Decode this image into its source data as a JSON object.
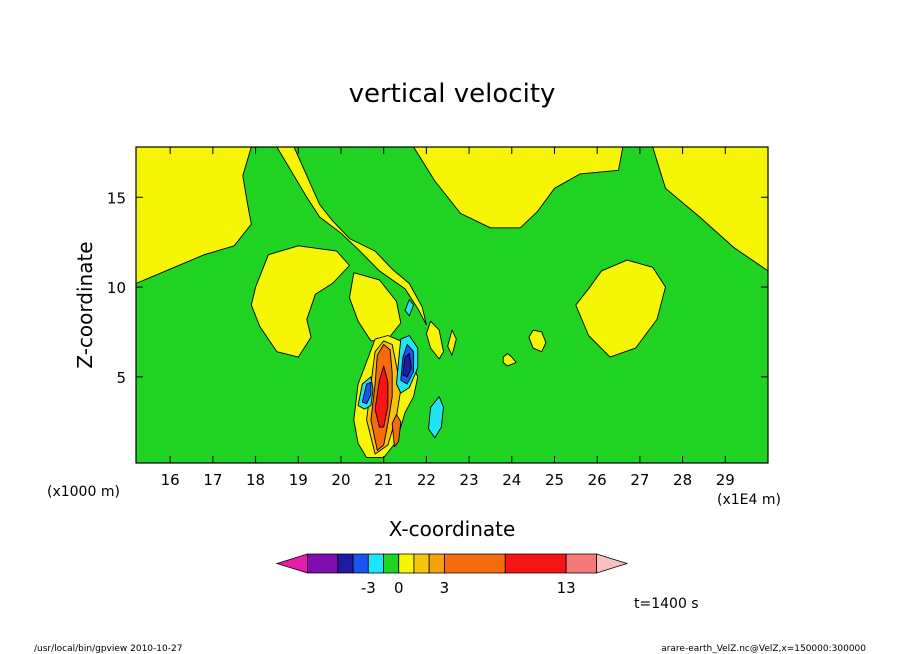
{
  "chart_data": {
    "type": "contour",
    "title": "vertical velocity",
    "xlabel": "X-coordinate",
    "ylabel": "Z-coordinate",
    "x_unit": "(x1E4 m)",
    "y_unit": "(x1000 m)",
    "xlim": [
      15.2,
      30.0
    ],
    "ylim": [
      0.2,
      17.8
    ],
    "x_ticks": [
      16,
      17,
      18,
      19,
      20,
      21,
      22,
      23,
      24,
      25,
      26,
      27,
      28,
      29
    ],
    "y_ticks": [
      5,
      10,
      15
    ],
    "time_label": "t=1400 s",
    "colorbar": {
      "colors": [
        "#e71ca8",
        "#7f0db0",
        "#1f1aa3",
        "#1a55f2",
        "#1ee6f7",
        "#20d323",
        "#f5f505",
        "#f6c30d",
        "#f5a30b",
        "#f56c0c",
        "#f51515",
        "#f77878",
        "#f8c0c0"
      ],
      "widths": [
        1,
        1,
        0.5,
        0.5,
        0.5,
        0.5,
        0.5,
        0.5,
        0.5,
        2,
        2,
        1,
        1
      ],
      "labels": [
        {
          "text": "-3",
          "value": -3
        },
        {
          "text": "0",
          "value": 0
        },
        {
          "text": "3",
          "value": 3
        },
        {
          "text": "13",
          "value": 13
        }
      ]
    },
    "regions": [
      {
        "level": "positive (yellow)",
        "color": "#f5f505",
        "polys": [
          [
            [
              15.2,
              10.2
            ],
            [
              16.0,
              11.0
            ],
            [
              16.8,
              11.8
            ],
            [
              17.5,
              12.3
            ],
            [
              17.9,
              13.5
            ],
            [
              17.8,
              14.8
            ],
            [
              17.7,
              16.2
            ],
            [
              17.9,
              17.8
            ],
            [
              15.2,
              17.8
            ]
          ],
          [
            [
              18.9,
              17.8
            ],
            [
              19.2,
              16.2
            ],
            [
              19.5,
              14.6
            ],
            [
              19.8,
              13.7
            ],
            [
              20.2,
              12.7
            ],
            [
              20.8,
              12.0
            ],
            [
              21.2,
              11.0
            ],
            [
              21.6,
              10.2
            ],
            [
              21.9,
              8.9
            ],
            [
              22.0,
              7.9
            ],
            [
              21.8,
              8.8
            ],
            [
              21.5,
              9.9
            ],
            [
              20.9,
              10.9
            ],
            [
              20.4,
              12.1
            ],
            [
              20.0,
              13.0
            ],
            [
              19.5,
              13.9
            ],
            [
              19.2,
              15.0
            ],
            [
              18.5,
              17.8
            ]
          ],
          [
            [
              21.7,
              17.8
            ],
            [
              22.2,
              15.9
            ],
            [
              22.8,
              14.1
            ],
            [
              23.5,
              13.3
            ],
            [
              24.2,
              13.3
            ],
            [
              24.6,
              14.2
            ],
            [
              25.0,
              15.5
            ],
            [
              25.6,
              16.3
            ],
            [
              26.5,
              16.5
            ],
            [
              26.6,
              17.8
            ]
          ],
          [
            [
              27.3,
              17.8
            ],
            [
              27.6,
              15.5
            ],
            [
              28.4,
              13.9
            ],
            [
              29.2,
              12.2
            ],
            [
              30.0,
              10.9
            ],
            [
              30.0,
              17.8
            ]
          ],
          [
            [
              18.0,
              10.0
            ],
            [
              18.3,
              11.8
            ],
            [
              19.0,
              12.3
            ],
            [
              19.9,
              12.0
            ],
            [
              20.2,
              11.2
            ],
            [
              19.8,
              10.2
            ],
            [
              19.4,
              9.6
            ],
            [
              19.2,
              8.2
            ],
            [
              19.3,
              7.2
            ],
            [
              19.0,
              6.1
            ],
            [
              18.5,
              6.4
            ],
            [
              18.1,
              7.8
            ],
            [
              17.9,
              9.0
            ]
          ],
          [
            [
              20.3,
              10.8
            ],
            [
              20.9,
              10.4
            ],
            [
              21.3,
              9.2
            ],
            [
              21.4,
              8.0
            ],
            [
              21.1,
              7.1
            ],
            [
              20.7,
              7.0
            ],
            [
              20.4,
              8.1
            ],
            [
              20.2,
              9.4
            ]
          ],
          [
            [
              25.8,
              7.3
            ],
            [
              26.3,
              6.1
            ],
            [
              26.9,
              6.6
            ],
            [
              27.4,
              8.2
            ],
            [
              27.6,
              10.0
            ],
            [
              27.3,
              11.1
            ],
            [
              26.7,
              11.5
            ],
            [
              26.1,
              10.9
            ],
            [
              25.8,
              9.9
            ],
            [
              25.5,
              9.0
            ]
          ],
          [
            [
              24.5,
              7.6
            ],
            [
              24.7,
              7.5
            ],
            [
              24.8,
              6.9
            ],
            [
              24.7,
              6.4
            ],
            [
              24.5,
              6.6
            ],
            [
              24.4,
              7.2
            ]
          ],
          [
            [
              23.9,
              6.3
            ],
            [
              24.0,
              6.1
            ],
            [
              24.1,
              5.8
            ],
            [
              23.9,
              5.6
            ],
            [
              23.8,
              5.8
            ],
            [
              23.8,
              6.1
            ]
          ],
          [
            [
              22.1,
              8.1
            ],
            [
              22.3,
              7.6
            ],
            [
              22.4,
              6.4
            ],
            [
              22.3,
              6.0
            ],
            [
              22.1,
              6.6
            ],
            [
              22.0,
              7.4
            ]
          ],
          [
            [
              22.6,
              7.6
            ],
            [
              22.7,
              7.1
            ],
            [
              22.6,
              6.2
            ],
            [
              22.5,
              6.7
            ]
          ],
          [
            [
              20.3,
              2.6
            ],
            [
              20.4,
              4.6
            ],
            [
              20.5,
              5.2
            ],
            [
              20.8,
              7.1
            ],
            [
              21.1,
              7.3
            ],
            [
              21.4,
              7.0
            ],
            [
              21.6,
              6.0
            ],
            [
              21.8,
              5.0
            ],
            [
              21.7,
              3.9
            ],
            [
              21.5,
              3.0
            ],
            [
              21.3,
              1.4
            ],
            [
              21.0,
              0.5
            ],
            [
              20.6,
              0.5
            ],
            [
              20.4,
              1.3
            ]
          ]
        ]
      },
      {
        "level": "weak positive (orange-yellow)",
        "color": "#f6c30d",
        "polys": [
          [
            [
              20.6,
              2.6
            ],
            [
              20.7,
              4.6
            ],
            [
              20.8,
              6.4
            ],
            [
              21.0,
              7.0
            ],
            [
              21.2,
              6.8
            ],
            [
              21.3,
              5.6
            ],
            [
              21.4,
              4.3
            ],
            [
              21.3,
              2.8
            ],
            [
              21.1,
              1.2
            ],
            [
              20.8,
              0.7
            ]
          ]
        ]
      },
      {
        "level": "moderate positive (orange)",
        "color": "#f56c0c",
        "polys": [
          [
            [
              20.7,
              2.6
            ],
            [
              20.8,
              4.6
            ],
            [
              20.85,
              6.2
            ],
            [
              21.0,
              6.8
            ],
            [
              21.15,
              6.5
            ],
            [
              21.2,
              5.2
            ],
            [
              21.2,
              3.9
            ],
            [
              21.1,
              2.4
            ],
            [
              21.0,
              1.2
            ],
            [
              20.85,
              0.9
            ]
          ],
          [
            [
              21.2,
              2.4
            ],
            [
              21.3,
              2.9
            ],
            [
              21.4,
              2.5
            ],
            [
              21.35,
              1.4
            ],
            [
              21.25,
              1.1
            ]
          ]
        ]
      },
      {
        "level": "strong positive (red)",
        "color": "#f51515",
        "polys": [
          [
            [
              20.8,
              3.2
            ],
            [
              20.9,
              4.8
            ],
            [
              21.0,
              5.6
            ],
            [
              21.1,
              4.7
            ],
            [
              21.1,
              3.4
            ],
            [
              21.0,
              2.2
            ],
            [
              20.9,
              2.2
            ]
          ]
        ]
      },
      {
        "level": "negative (cyan)",
        "color": "#1ee6f7",
        "polys": [
          [
            [
              21.3,
              4.6
            ],
            [
              21.35,
              5.9
            ],
            [
              21.4,
              7.1
            ],
            [
              21.6,
              7.3
            ],
            [
              21.8,
              6.6
            ],
            [
              21.8,
              5.5
            ],
            [
              21.6,
              4.4
            ],
            [
              21.4,
              4.1
            ]
          ],
          [
            [
              20.4,
              3.4
            ],
            [
              20.5,
              4.6
            ],
            [
              20.7,
              5.0
            ],
            [
              20.75,
              4.3
            ],
            [
              20.7,
              3.4
            ],
            [
              20.55,
              3.2
            ]
          ],
          [
            [
              22.05,
              2.1
            ],
            [
              22.1,
              3.3
            ],
            [
              22.3,
              3.9
            ],
            [
              22.4,
              3.3
            ],
            [
              22.35,
              2.2
            ],
            [
              22.2,
              1.6
            ]
          ],
          [
            [
              21.5,
              8.7
            ],
            [
              21.6,
              9.3
            ],
            [
              21.7,
              9.0
            ],
            [
              21.6,
              8.4
            ]
          ]
        ]
      },
      {
        "level": "strong negative (blue)",
        "color": "#1a55f2",
        "polys": [
          [
            [
              21.4,
              4.8
            ],
            [
              21.45,
              6.1
            ],
            [
              21.55,
              6.8
            ],
            [
              21.7,
              6.4
            ],
            [
              21.7,
              5.3
            ],
            [
              21.55,
              4.6
            ]
          ],
          [
            [
              20.5,
              3.6
            ],
            [
              20.6,
              4.6
            ],
            [
              20.7,
              4.7
            ],
            [
              20.7,
              4.0
            ],
            [
              20.6,
              3.5
            ]
          ]
        ]
      },
      {
        "level": "very strong negative (navy)",
        "color": "#1f1aa3",
        "polys": [
          [
            [
              21.45,
              5.1
            ],
            [
              21.5,
              6.1
            ],
            [
              21.6,
              6.3
            ],
            [
              21.65,
              5.5
            ],
            [
              21.55,
              5.0
            ]
          ]
        ]
      }
    ]
  },
  "footer": {
    "left": "/usr/local/bin/gpview  2010-10-27",
    "right": "arare-earth_VelZ.nc@VelZ,x=150000:300000"
  }
}
